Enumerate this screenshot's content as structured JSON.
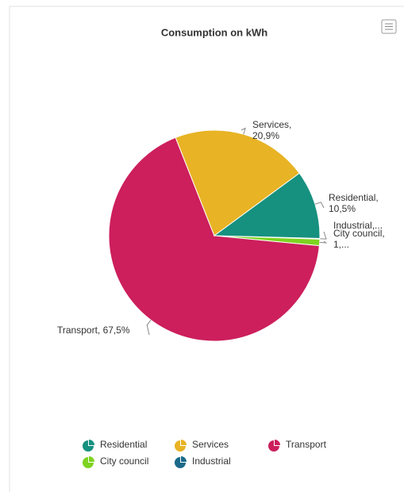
{
  "chart_data": {
    "type": "pie",
    "title": "Consumption on kWh",
    "categories": [
      "Residential",
      "Services",
      "Transport",
      "City council",
      "Industrial"
    ],
    "values": [
      10.5,
      20.9,
      67.5,
      1.0,
      0.1
    ],
    "value_labels": [
      "Residential, 10,5%",
      "Services, 20,9%",
      "Transport, 67,5%",
      "City council, 1,...",
      "Industrial,..."
    ],
    "colors": [
      "#16917f",
      "#e8b324",
      "#cc1f5c",
      "#7ed321",
      "#1b6a8a"
    ],
    "legend": "bottom"
  }
}
